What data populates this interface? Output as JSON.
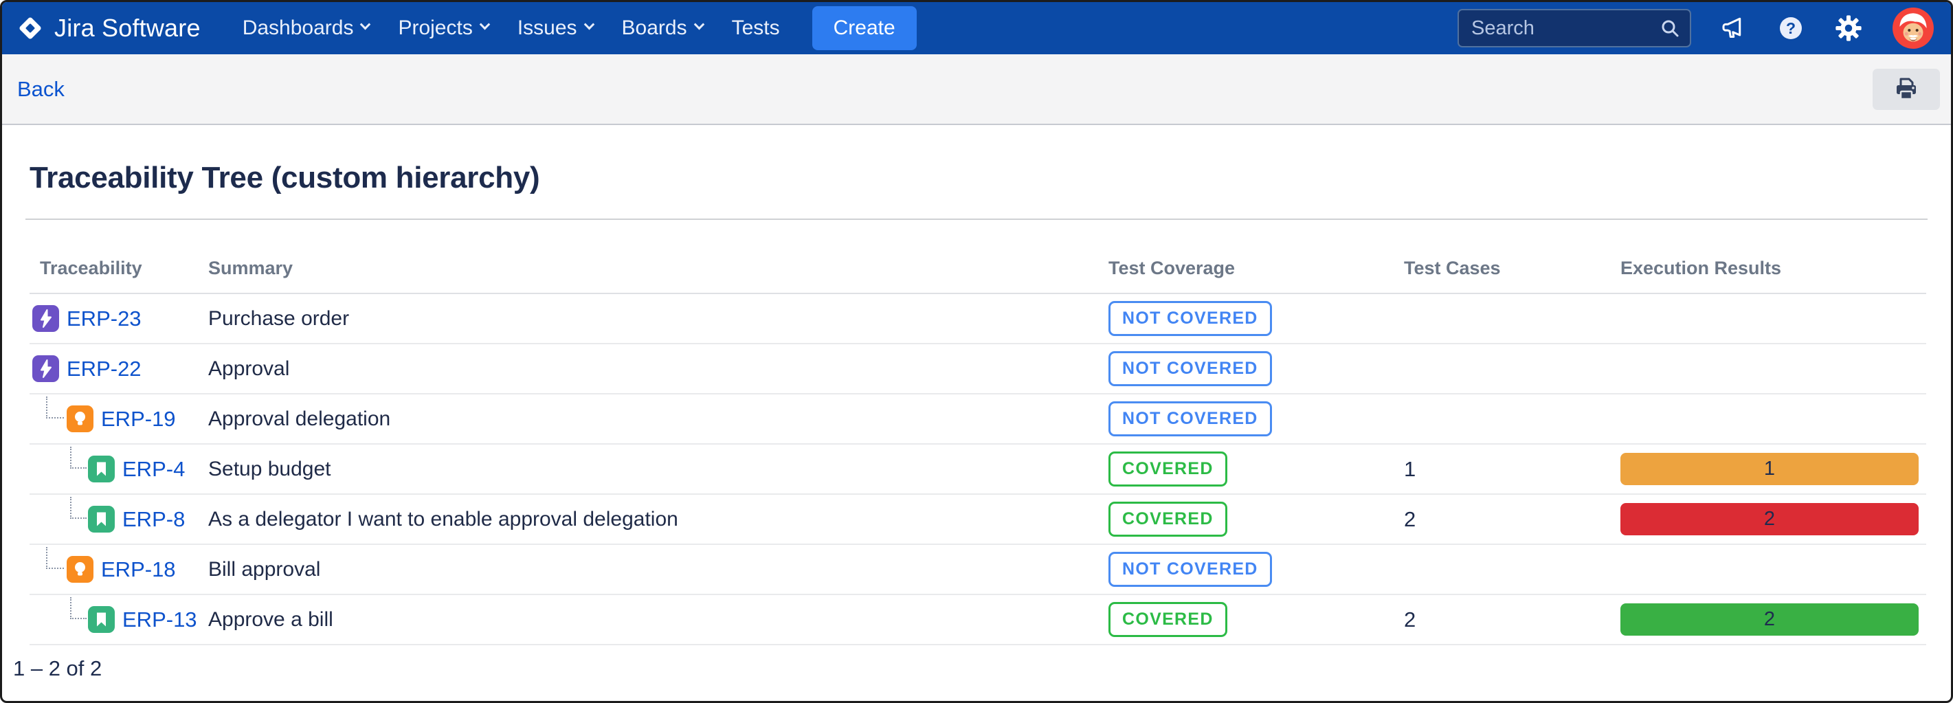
{
  "nav": {
    "brand": "Jira Software",
    "items": [
      {
        "label": "Dashboards",
        "has_dropdown": true
      },
      {
        "label": "Projects",
        "has_dropdown": true
      },
      {
        "label": "Issues",
        "has_dropdown": true
      },
      {
        "label": "Boards",
        "has_dropdown": true
      },
      {
        "label": "Tests",
        "has_dropdown": false
      }
    ],
    "create_label": "Create",
    "search_placeholder": "Search"
  },
  "toolbar": {
    "back_label": "Back"
  },
  "page": {
    "title": "Traceability Tree (custom hierarchy)",
    "pagination": "1 – 2 of 2"
  },
  "table": {
    "columns": [
      "Traceability",
      "Summary",
      "Test Coverage",
      "Test Cases",
      "Execution Results"
    ],
    "rows": [
      {
        "key": "ERP-23",
        "type": "epic",
        "level": 0,
        "summary": "Purchase order",
        "coverage": "NOT COVERED",
        "covered": false,
        "test_cases": "",
        "execution": null
      },
      {
        "key": "ERP-22",
        "type": "epic",
        "level": 0,
        "summary": "Approval",
        "coverage": "NOT COVERED",
        "covered": false,
        "test_cases": "",
        "execution": null
      },
      {
        "key": "ERP-19",
        "type": "feature",
        "level": 1,
        "summary": "Approval delegation",
        "coverage": "NOT COVERED",
        "covered": false,
        "test_cases": "",
        "execution": null
      },
      {
        "key": "ERP-4",
        "type": "story",
        "level": 2,
        "summary": "Setup budget",
        "coverage": "COVERED",
        "covered": true,
        "test_cases": "1",
        "execution": {
          "value": "1",
          "color": "#EDA33F"
        }
      },
      {
        "key": "ERP-8",
        "type": "story",
        "level": 2,
        "summary": "As a delegator I want to enable approval delegation",
        "coverage": "COVERED",
        "covered": true,
        "test_cases": "2",
        "execution": {
          "value": "2",
          "color": "#DB2C34"
        }
      },
      {
        "key": "ERP-18",
        "type": "feature",
        "level": 1,
        "summary": "Bill approval",
        "coverage": "NOT COVERED",
        "covered": false,
        "test_cases": "",
        "execution": null
      },
      {
        "key": "ERP-13",
        "type": "story",
        "level": 2,
        "summary": "Approve a bill",
        "coverage": "COVERED",
        "covered": true,
        "test_cases": "2",
        "execution": {
          "value": "2",
          "color": "#39B044"
        }
      }
    ]
  },
  "colors": {
    "navbar": "#0B4AA6",
    "create_button": "#2D7CF0",
    "link_blue": "#0D52CC",
    "not_covered": "#4285F4",
    "covered": "#2CBB46",
    "epic_icon": "#6C51C6",
    "feature_icon": "#F98C1F",
    "story_icon": "#36B37E",
    "exec_orange": "#EDA33F",
    "exec_red": "#DB2C34",
    "exec_green": "#39B044"
  },
  "icons": {
    "nav": [
      "announcement-icon",
      "help-icon",
      "settings-icon",
      "avatar"
    ],
    "other": [
      "jira-logo-icon",
      "search-icon",
      "print-icon",
      "epic-icon",
      "feature-icon",
      "story-icon"
    ]
  }
}
